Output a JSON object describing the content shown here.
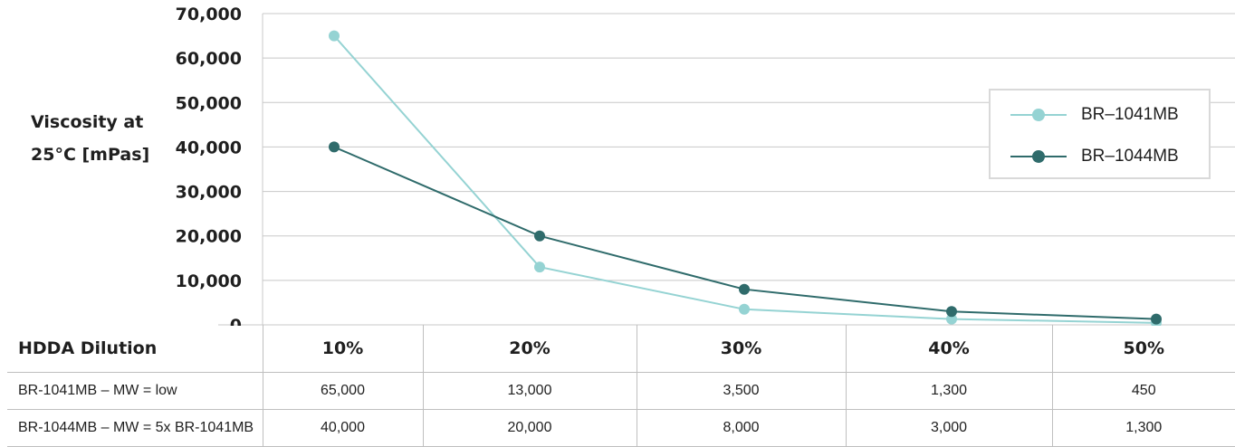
{
  "colors": {
    "series_light": "#95d3d3",
    "series_dark": "#2f6b6b",
    "grid": "#c8c8c8"
  },
  "chart_data": {
    "type": "line",
    "ylabel_lines": [
      "Viscosity at",
      "25°C [mPas]"
    ],
    "ylim": [
      0,
      70000
    ],
    "yticks": [
      0,
      10000,
      20000,
      30000,
      40000,
      50000,
      60000,
      70000
    ],
    "ytick_labels": [
      "0",
      "10,000",
      "20,000",
      "30,000",
      "40,000",
      "50,000",
      "60,000",
      "70,000"
    ],
    "categories": [
      "10%",
      "20%",
      "30%",
      "40%",
      "50%"
    ],
    "series": [
      {
        "name": "BR–1041MB",
        "color": "#95d3d3",
        "values": [
          65000,
          13000,
          3500,
          1300,
          450
        ]
      },
      {
        "name": "BR–1044MB",
        "color": "#2f6b6b",
        "values": [
          40000,
          20000,
          8000,
          3000,
          1300
        ]
      }
    ],
    "grid": true,
    "legend": "right"
  },
  "table": {
    "header": [
      "HDDA Dilution",
      "10%",
      "20%",
      "30%",
      "40%",
      "50%"
    ],
    "rows": [
      [
        "BR-1041MB – MW = low",
        "65,000",
        "13,000",
        "3,500",
        "1,300",
        "450"
      ],
      [
        "BR-1044MB – MW = 5x BR-1041MB",
        "40,000",
        "20,000",
        "8,000",
        "3,000",
        "1,300"
      ]
    ]
  }
}
